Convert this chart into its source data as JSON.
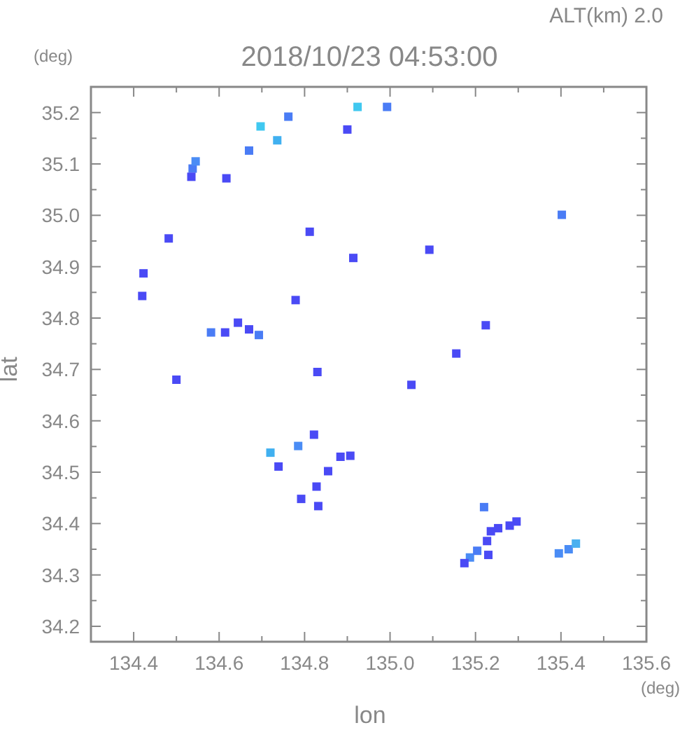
{
  "chart_data": {
    "type": "scatter",
    "title": "2018/10/23 04:53:00",
    "subtitle": "ALT(km) 2.0",
    "xlabel": "lon",
    "ylabel": "lat",
    "annotations": [
      "(deg)",
      "(deg)"
    ],
    "xlim": [
      134.3,
      135.6
    ],
    "ylim": [
      34.17,
      35.25
    ],
    "xticks": [
      {
        "value": 134.3,
        "label": null
      },
      134.4,
      {
        "value": 134.5,
        "label": null
      },
      134.6,
      {
        "value": 134.7,
        "label": null
      },
      134.8,
      {
        "value": 134.9,
        "label": null
      },
      {
        "value": 135,
        "label": "135.0"
      },
      {
        "value": 135.1,
        "label": null
      },
      135.2,
      {
        "value": 135.3,
        "label": null
      },
      135.4,
      {
        "value": 135.5,
        "label": null
      },
      135.6
    ],
    "yticks": [
      34.2,
      {
        "value": 34.25,
        "label": null
      },
      34.3,
      {
        "value": 34.35,
        "label": null
      },
      34.4,
      {
        "value": 34.45,
        "label": null
      },
      34.5,
      {
        "value": 34.55,
        "label": null
      },
      34.6,
      {
        "value": 34.65,
        "label": null
      },
      34.7,
      {
        "value": 34.75,
        "label": null
      },
      34.8,
      {
        "value": 34.85,
        "label": null
      },
      34.9,
      {
        "value": 34.95,
        "label": null
      },
      {
        "value": 35,
        "label": "35.0"
      },
      {
        "value": 35.05,
        "label": null
      },
      35.1,
      {
        "value": 35.15,
        "label": null
      },
      35.2
    ],
    "grid": false,
    "marker": "square",
    "series": [
      {
        "x": [
          134.538,
          134.545,
          134.535,
          134.697,
          134.762,
          134.67,
          134.736,
          134.924,
          134.993,
          134.9,
          134.617,
          134.812,
          134.914,
          134.482,
          134.423,
          134.42,
          134.779,
          134.581,
          134.614,
          134.67,
          134.693,
          134.644,
          135.402,
          135.092,
          135.224,
          135.155,
          134.72,
          134.785,
          134.822,
          134.739,
          134.884,
          134.907,
          134.855,
          134.828,
          134.792,
          134.832,
          135.22,
          135.296,
          135.28,
          135.253,
          135.236,
          135.227,
          135.23,
          135.187,
          135.174,
          135.204,
          135.418,
          135.395,
          135.435,
          134.5,
          135.05,
          134.83
        ],
        "values": [
          35.091,
          35.105,
          35.075,
          35.173,
          35.192,
          35.126,
          35.146,
          35.211,
          35.211,
          35.167,
          35.072,
          34.968,
          34.917,
          34.955,
          34.887,
          34.843,
          34.835,
          34.772,
          34.772,
          34.778,
          34.767,
          34.791,
          35.001,
          34.933,
          34.786,
          34.731,
          34.538,
          34.551,
          34.573,
          34.511,
          34.53,
          34.532,
          34.502,
          34.472,
          34.448,
          34.434,
          34.432,
          34.404,
          34.396,
          34.391,
          34.385,
          34.366,
          34.339,
          34.334,
          34.323,
          34.347,
          34.35,
          34.342,
          34.361,
          34.68,
          34.67,
          34.695
        ],
        "colors": [
          "#4a7cf5",
          "#4a8cf5",
          "#4a4af5",
          "#40c8f0",
          "#4a7cf5",
          "#4a7cf5",
          "#40b0f0",
          "#40c8f0",
          "#4a7cf5",
          "#4a4af5",
          "#4a4af5",
          "#4a4af5",
          "#4a4af5",
          "#4a4af5",
          "#4a4af5",
          "#4a4af5",
          "#4a4af5",
          "#4a7cf5",
          "#4a4af5",
          "#4a4af5",
          "#4a7cf5",
          "#4a4af5",
          "#4a7cf5",
          "#4a4af5",
          "#4a4af5",
          "#4a4af5",
          "#40b0f0",
          "#4a8cf5",
          "#4a4af5",
          "#4a4af5",
          "#4a4af5",
          "#4a4af5",
          "#4a4af5",
          "#4a4af5",
          "#4a4af5",
          "#4a4af5",
          "#4a7cf5",
          "#4a4af5",
          "#4a4af5",
          "#4a4af5",
          "#4a4af5",
          "#4a4af5",
          "#4a4af5",
          "#4a8cf5",
          "#4a4af5",
          "#4a7cf5",
          "#4a8cf5",
          "#4a8cf5",
          "#4ab0f0",
          "#4a4af5",
          "#4a4af5",
          "#4a4af5"
        ]
      }
    ]
  }
}
